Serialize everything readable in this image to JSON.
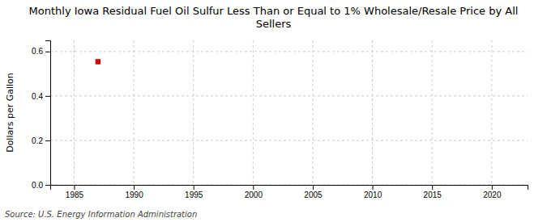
{
  "chart_data": {
    "type": "scatter",
    "title": "Monthly Iowa Residual Fuel Oil Sulfur Less Than or Equal to 1% Wholesale/Resale Price by All Sellers",
    "ylabel": "Dollars per Gallon",
    "source": "Source: U.S. Energy Information Administration",
    "x": [
      1987.0
    ],
    "values": [
      0.554
    ],
    "color": "#cc0000",
    "marker": "square",
    "xlim": [
      1983,
      2023
    ],
    "ylim": [
      0.0,
      0.65
    ],
    "xticks": [
      1985,
      1990,
      1995,
      2000,
      2005,
      2010,
      2015,
      2020
    ],
    "yticks": [
      {
        "value": 0.0,
        "label": "0.0"
      },
      0.2,
      0.4,
      0.6
    ],
    "grid": true
  }
}
